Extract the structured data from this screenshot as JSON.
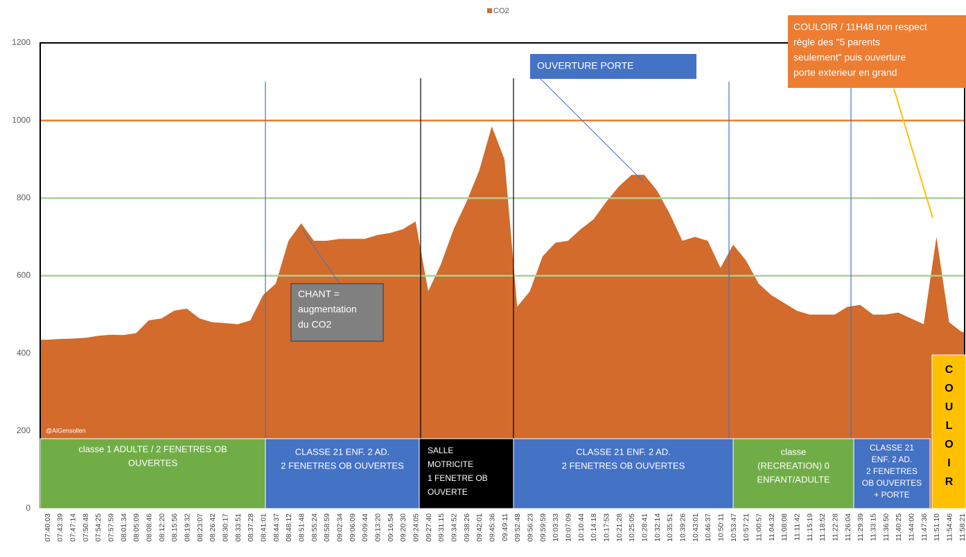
{
  "chart_data": {
    "type": "area",
    "legend": "CO2",
    "color": "#d26b2c",
    "watermark": "@AlGensollen",
    "categories": [
      "07:40:03",
      "07:43:39",
      "07:47:14",
      "07:50:48",
      "07:54:25",
      "07:57:59",
      "08:01:34",
      "08:05:09",
      "08:08:46",
      "08:12:20",
      "08:15:56",
      "08:19:32",
      "08:23:07",
      "08:26:42",
      "08:30:17",
      "08:33:51",
      "08:37:28",
      "08:41:01",
      "08:44:37",
      "08:48:12",
      "08:51:48",
      "08:55:24",
      "08:58:59",
      "09:02:34",
      "09:06:09",
      "09:09:44",
      "09:13:20",
      "09:16:54",
      "09:20:30",
      "09:24:05",
      "09:27:40",
      "09:31:15",
      "09:34:52",
      "09:38:26",
      "09:42:01",
      "09:45:36",
      "09:49:11",
      "09:52:48",
      "09:56:23",
      "09:59:59",
      "10:03:33",
      "10:07:09",
      "10:10:44",
      "10:14:18",
      "10:17:53",
      "10:21:28",
      "10:25:05",
      "10:28:41",
      "10:32:14",
      "10:35:51",
      "10:39:26",
      "10:43:01",
      "10:46:37",
      "10:50:11",
      "10:53:47",
      "10:57:21",
      "11:00:57",
      "11:04:32",
      "11:08:08",
      "11:11:42",
      "11:15:19",
      "11:18:52",
      "11:22:28",
      "11:26:04",
      "11:29:39",
      "11:33:15",
      "11:36:50",
      "11:40:25",
      "11:44:00",
      "11:47:36",
      "11:51:10",
      "11:54:46",
      "11:58:21"
    ],
    "values": [
      435,
      437,
      438,
      440,
      445,
      448,
      447,
      452,
      485,
      490,
      510,
      515,
      490,
      480,
      478,
      475,
      485,
      550,
      580,
      690,
      735,
      690,
      690,
      695,
      695,
      695,
      705,
      710,
      720,
      740,
      560,
      630,
      720,
      790,
      870,
      985,
      900,
      520,
      560,
      650,
      685,
      690,
      720,
      745,
      790,
      830,
      860,
      860,
      820,
      760,
      690,
      700,
      690,
      620,
      680,
      640,
      580,
      550,
      530,
      510,
      500,
      500,
      500,
      520,
      525,
      500,
      500,
      505,
      490,
      475,
      700,
      480,
      455
    ],
    "ylim": [
      0,
      1200
    ],
    "yticks": [
      0,
      200,
      400,
      600,
      800,
      1000,
      1200
    ],
    "reference_lines": [
      {
        "value": 1000,
        "color": "#ed7d31"
      },
      {
        "value": 800,
        "color": "#a9d18e"
      },
      {
        "value": 600,
        "color": "#a9d18e"
      }
    ],
    "zones": [
      {
        "lines": [
          "classe 1 ADULTE / 2 FENETRES OB",
          "OUVERTES"
        ],
        "color": "#70ad47"
      },
      {
        "lines": [
          "CLASSE 21 ENF.  2 AD.",
          "2 FENETRES OB OUVERTES"
        ],
        "color": "#4472c4"
      },
      {
        "lines": [
          "SALLE",
          "MOTRICITE",
          " 1 FENETRE OB",
          "OUVERTE"
        ],
        "color": "#000000"
      },
      {
        "lines": [
          "CLASSE 21 ENF. 2 AD.",
          "2 FENETRES OB OUVERTES"
        ],
        "color": "#4472c4"
      },
      {
        "lines": [
          "classe",
          "(RECREATION) 0",
          "ENFANT/ADULTE"
        ],
        "color": "#70ad47"
      },
      {
        "lines": [
          "CLASSE 21",
          "ENF. 2 AD.",
          "2 FENETRES",
          "OB OUVERTES",
          "+ PORTE"
        ],
        "color": "#4472c4"
      },
      {
        "lines": [
          "C",
          "O",
          "U",
          "L",
          "O",
          "I",
          "R"
        ],
        "color": "#ffc000"
      }
    ],
    "callouts": [
      {
        "lines": [
          "CHANT =",
          "augmentation",
          "du CO2"
        ],
        "color": "#808080"
      },
      {
        "lines": [
          "OUVERTURE PORTE"
        ],
        "color": "#4472c4"
      },
      {
        "lines": [
          "COULOIR / 11H48 non respect",
          "règle des \"5 parents",
          "seulement\" puis ouverture",
          "porte exterieur  en grand"
        ],
        "color": "#ed7d31"
      }
    ]
  }
}
